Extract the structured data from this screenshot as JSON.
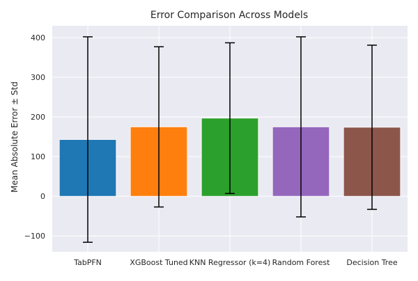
{
  "chart_data": {
    "type": "bar",
    "title": "Error Comparison Across Models",
    "xlabel": "",
    "ylabel": "Mean Absolute Error ± Std",
    "categories": [
      "TabPFN",
      "XGBoost Tuned",
      "KNN Regressor (k=4)",
      "Random Forest",
      "Decision Tree"
    ],
    "values": [
      143,
      175,
      197,
      175,
      174
    ],
    "errors": [
      259,
      202,
      190,
      227,
      207
    ],
    "colors": [
      "#1f77b4",
      "#ff7f0e",
      "#2ca02c",
      "#9467bd",
      "#8c564b"
    ],
    "yticks": [
      -100,
      0,
      100,
      200,
      300,
      400
    ],
    "ylim": [
      -140,
      430
    ],
    "grid": true,
    "background": "#eaeaf2"
  }
}
